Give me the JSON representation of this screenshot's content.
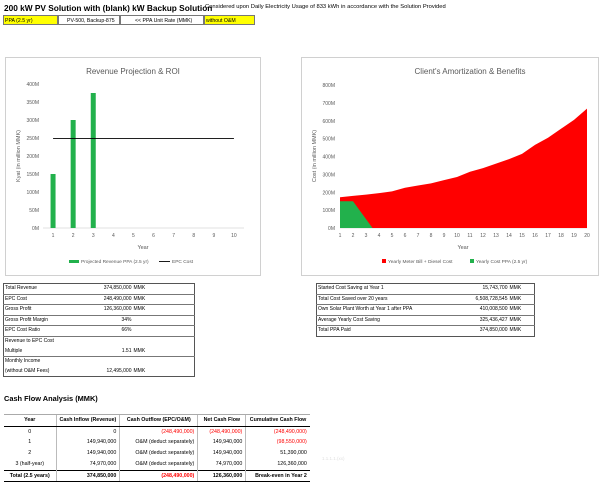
{
  "header": {
    "title": "200 kW PV Solution with (blank) kW Backup Solution",
    "subtitle": "Considered upon Daily Electricity Usage of 833 kWh in accordance with the Solution Provided",
    "cell1": "PPA (2.5 yr)",
    "cell2": "PV-500, Backup-875",
    "cell3": "<< PPA Unit Rate (MMK)",
    "cell4": "without O&M"
  },
  "charts": {
    "left": {
      "y_ticks": [
        "400M",
        "350M",
        "300M",
        "250M",
        "200M",
        "150M",
        "100M",
        "50M",
        "0M"
      ]
    },
    "right": {
      "y_ticks": [
        "800M",
        "700M",
        "600M",
        "500M",
        "400M",
        "300M",
        "200M",
        "100M",
        "0M"
      ]
    }
  },
  "chart_data": [
    {
      "type": "bar",
      "title": "Revenue Projection & ROI",
      "xlabel": "Year",
      "ylabel": "Kyat (in million MMK)",
      "categories": [
        "1",
        "2",
        "3",
        "4",
        "5",
        "6",
        "7",
        "8",
        "9",
        "10"
      ],
      "ylim": [
        0,
        400
      ],
      "series": [
        {
          "name": "Projected Revenue PPA (2.5 yr)",
          "type": "bar",
          "color": "#22b14c",
          "values": [
            150,
            300,
            375,
            null,
            null,
            null,
            null,
            null,
            null,
            null
          ]
        },
        {
          "name": "EPC Cost",
          "type": "line",
          "color": "#000000",
          "values": [
            248.49,
            248.49,
            248.49,
            248.49,
            248.49,
            248.49,
            248.49,
            248.49,
            248.49,
            248.49
          ]
        }
      ],
      "legend": "bottom",
      "grid": false
    },
    {
      "type": "area",
      "title": "Client's Amortization & Benefits",
      "xlabel": "Year",
      "ylabel": "Cost (in million MMK)",
      "categories": [
        "1",
        "2",
        "3",
        "4",
        "5",
        "6",
        "7",
        "8",
        "9",
        "10",
        "11",
        "12",
        "13",
        "14",
        "15",
        "16",
        "17",
        "18",
        "19",
        "20"
      ],
      "ylim": [
        0,
        800
      ],
      "series": [
        {
          "name": "Yearly Meter Bill + Diesel Cost",
          "color": "#ff0000",
          "x": [
            1,
            2,
            3,
            4,
            5,
            6,
            7,
            8,
            9,
            10,
            11,
            12,
            13,
            14,
            15,
            16,
            17,
            18,
            19,
            20
          ],
          "values": [
            172,
            180,
            187,
            195,
            205,
            225,
            238,
            250,
            268,
            285,
            315,
            335,
            360,
            385,
            415,
            465,
            505,
            555,
            605,
            668
          ]
        },
        {
          "name": "Yearly Cost PPA (2.5 yr)",
          "color": "#22b14c",
          "x": [
            1,
            2,
            3.5
          ],
          "values": [
            150,
            150,
            0
          ]
        }
      ],
      "legend": "bottom",
      "grid": false
    }
  ],
  "summary_left": [
    {
      "label": "Total Revenue",
      "value": "374,850,000",
      "unit": "MMK"
    },
    {
      "label": "EPC Cost",
      "value": "248,490,000",
      "unit": "MMK"
    },
    {
      "label": "Gross Profit",
      "value": "126,360,000",
      "unit": "MMK"
    },
    {
      "label": "Gross Profit Margin",
      "value": "34%",
      "unit": ""
    },
    {
      "label": "EPC Cost Ratio",
      "value": "66%",
      "unit": ""
    },
    {
      "label": "Revenue to EPC Cost",
      "value": "",
      "unit": ""
    },
    {
      "label": "Multiple",
      "value": "1.51",
      "unit": "MMK"
    },
    {
      "label": "Monthly Income",
      "value": "",
      "unit": ""
    },
    {
      "label": "(without O&M Fees)",
      "value": "12,495,000",
      "unit": "MMK"
    }
  ],
  "summary_right": [
    {
      "label": "Started Cost Saving at Year 1",
      "value": "15,743,700",
      "unit": "MMK"
    },
    {
      "label": "Total Cost Saved over 20 years",
      "value": "6,508,728,545",
      "unit": "MMK"
    },
    {
      "label": "Own Solar Plant Worth at Year 1 after PPA",
      "value": "410,008,500",
      "unit": "MMK"
    },
    {
      "label": "Average Yearly Cost Saving",
      "value": "325,436,427",
      "unit": "MMK"
    },
    {
      "label": "Total PPA Paid",
      "value": "374,850,000",
      "unit": "MMK"
    }
  ],
  "cashflow": {
    "title": "Cash Flow Analysis (MMK)",
    "columns": [
      "Year",
      "Cash Inflow (Revenue)",
      "Cash Outflow (EPC/O&M)",
      "Net Cash Flow",
      "Cumulative Cash Flow"
    ],
    "rows": [
      [
        "0",
        "0",
        "(248,490,000)",
        "(248,490,000)",
        "(248,490,000)"
      ],
      [
        "1",
        "149,940,000",
        "O&M (deduct separately)",
        "149,940,000",
        "(98,550,000)"
      ],
      [
        "2",
        "149,940,000",
        "O&M (deduct separately)",
        "149,940,000",
        "51,390,000"
      ],
      [
        "3 (half-year)",
        "74,970,000",
        "O&M (deduct separately)",
        "74,970,000",
        "126,360,000"
      ]
    ],
    "total": [
      "Total (2.5 years)",
      "374,850,000",
      "(248,490,000)",
      "126,360,000",
      "Break-even in Year 2"
    ],
    "watermark": "1.1.1.1.(xx)"
  }
}
